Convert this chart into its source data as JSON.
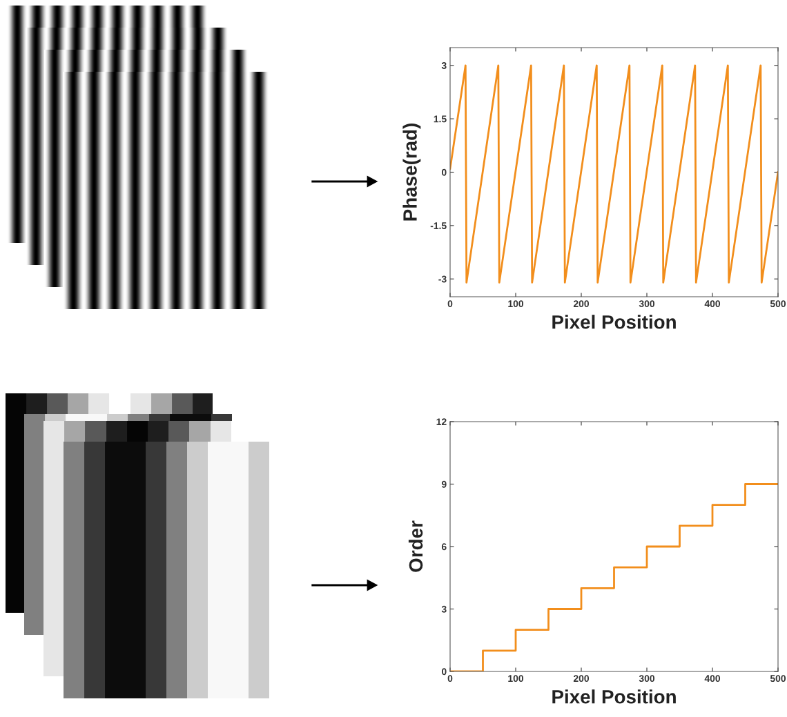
{
  "chart_data": [
    {
      "type": "line",
      "xlabel": "Pixel Position",
      "ylabel": "Phase(rad)",
      "x": [
        0,
        23.5,
        25,
        73.5,
        75,
        123.5,
        125,
        173.5,
        175,
        223.5,
        225,
        273.5,
        275,
        323.5,
        325,
        373.5,
        375,
        423.5,
        425,
        473.5,
        475,
        500
      ],
      "series": [
        {
          "color": "#f28e1c",
          "values": [
            0.1,
            3,
            -3.1,
            3,
            -3.1,
            3,
            -3.1,
            3,
            -3.1,
            3,
            -3.1,
            3,
            -3.1,
            3,
            -3.1,
            3,
            -3.1,
            3,
            -3.1,
            3,
            -3.1,
            0
          ]
        }
      ],
      "xlim": [
        0,
        500
      ],
      "ylim": [
        -3.5,
        3.5
      ],
      "xticks": [
        0,
        100,
        200,
        300,
        400,
        500
      ],
      "yticks": [
        -3,
        -1.5,
        0,
        1.5,
        3
      ]
    },
    {
      "type": "step",
      "xlabel": "Pixel Position",
      "ylabel": "Order",
      "x": [
        0,
        50,
        100,
        150,
        200,
        250,
        300,
        350,
        400,
        450,
        500
      ],
      "series": [
        {
          "color": "#f28e1c",
          "values": [
            0,
            1,
            2,
            3,
            4,
            5,
            6,
            7,
            8,
            9,
            9
          ]
        }
      ],
      "xlim": [
        0,
        500
      ],
      "ylim": [
        0,
        12
      ],
      "xticks": [
        0,
        100,
        200,
        300,
        400,
        500
      ],
      "yticks": [
        0,
        3,
        6,
        9,
        12
      ]
    }
  ]
}
